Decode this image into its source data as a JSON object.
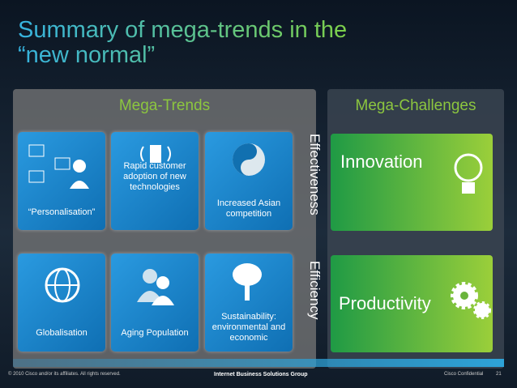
{
  "header": {
    "title": [
      "Summary of mega-trends in the",
      "“new normal”"
    ]
  },
  "left_panel": {
    "title": "Mega-Trends",
    "tiles": [
      "“Personalisation”",
      "Rapid customer adoption of new technologies",
      "Increased Asian competition",
      "Globalisation",
      "Aging Population",
      "Sustainability: environmental and economic"
    ]
  },
  "connectors": [
    "Effectiveness",
    "Efficiency"
  ],
  "right_panel": {
    "title": "Mega-Challenges",
    "tiles": [
      "Innovation",
      "Productivity"
    ]
  },
  "footer": {
    "copyright": "© 2010 Cisco and/or its affiliates. All rights reserved.",
    "group": "Internet Business Solutions Group",
    "confidential": "Cisco Confidential",
    "page": 21
  }
}
